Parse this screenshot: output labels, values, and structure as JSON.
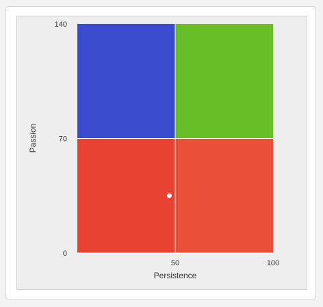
{
  "chart_data": {
    "type": "scatter",
    "xlabel": "Persistence",
    "ylabel": "Passion",
    "xlim": [
      0,
      100
    ],
    "ylim": [
      0,
      140
    ],
    "x_ticks": [
      {
        "value": 50,
        "label": "50"
      },
      {
        "value": 100,
        "label": "100"
      }
    ],
    "y_ticks": [
      {
        "value": 0,
        "label": "0"
      },
      {
        "value": 70,
        "label": "70"
      },
      {
        "value": 140,
        "label": "140"
      }
    ],
    "quadrants": [
      {
        "name": "top-left",
        "x": [
          0,
          50
        ],
        "y": [
          70,
          140
        ],
        "color": "#3a4bcd"
      },
      {
        "name": "top-right",
        "x": [
          50,
          100
        ],
        "y": [
          70,
          140
        ],
        "color": "#66bf26"
      },
      {
        "name": "bottom-left",
        "x": [
          0,
          50
        ],
        "y": [
          0,
          70
        ],
        "color": "#e84233"
      },
      {
        "name": "bottom-right",
        "x": [
          50,
          100
        ],
        "y": [
          0,
          70
        ],
        "color": "#ea5038"
      }
    ],
    "points": [
      {
        "x": 47,
        "y": 35,
        "color": "#ffffff"
      }
    ],
    "grid_color": "#ffffff"
  }
}
